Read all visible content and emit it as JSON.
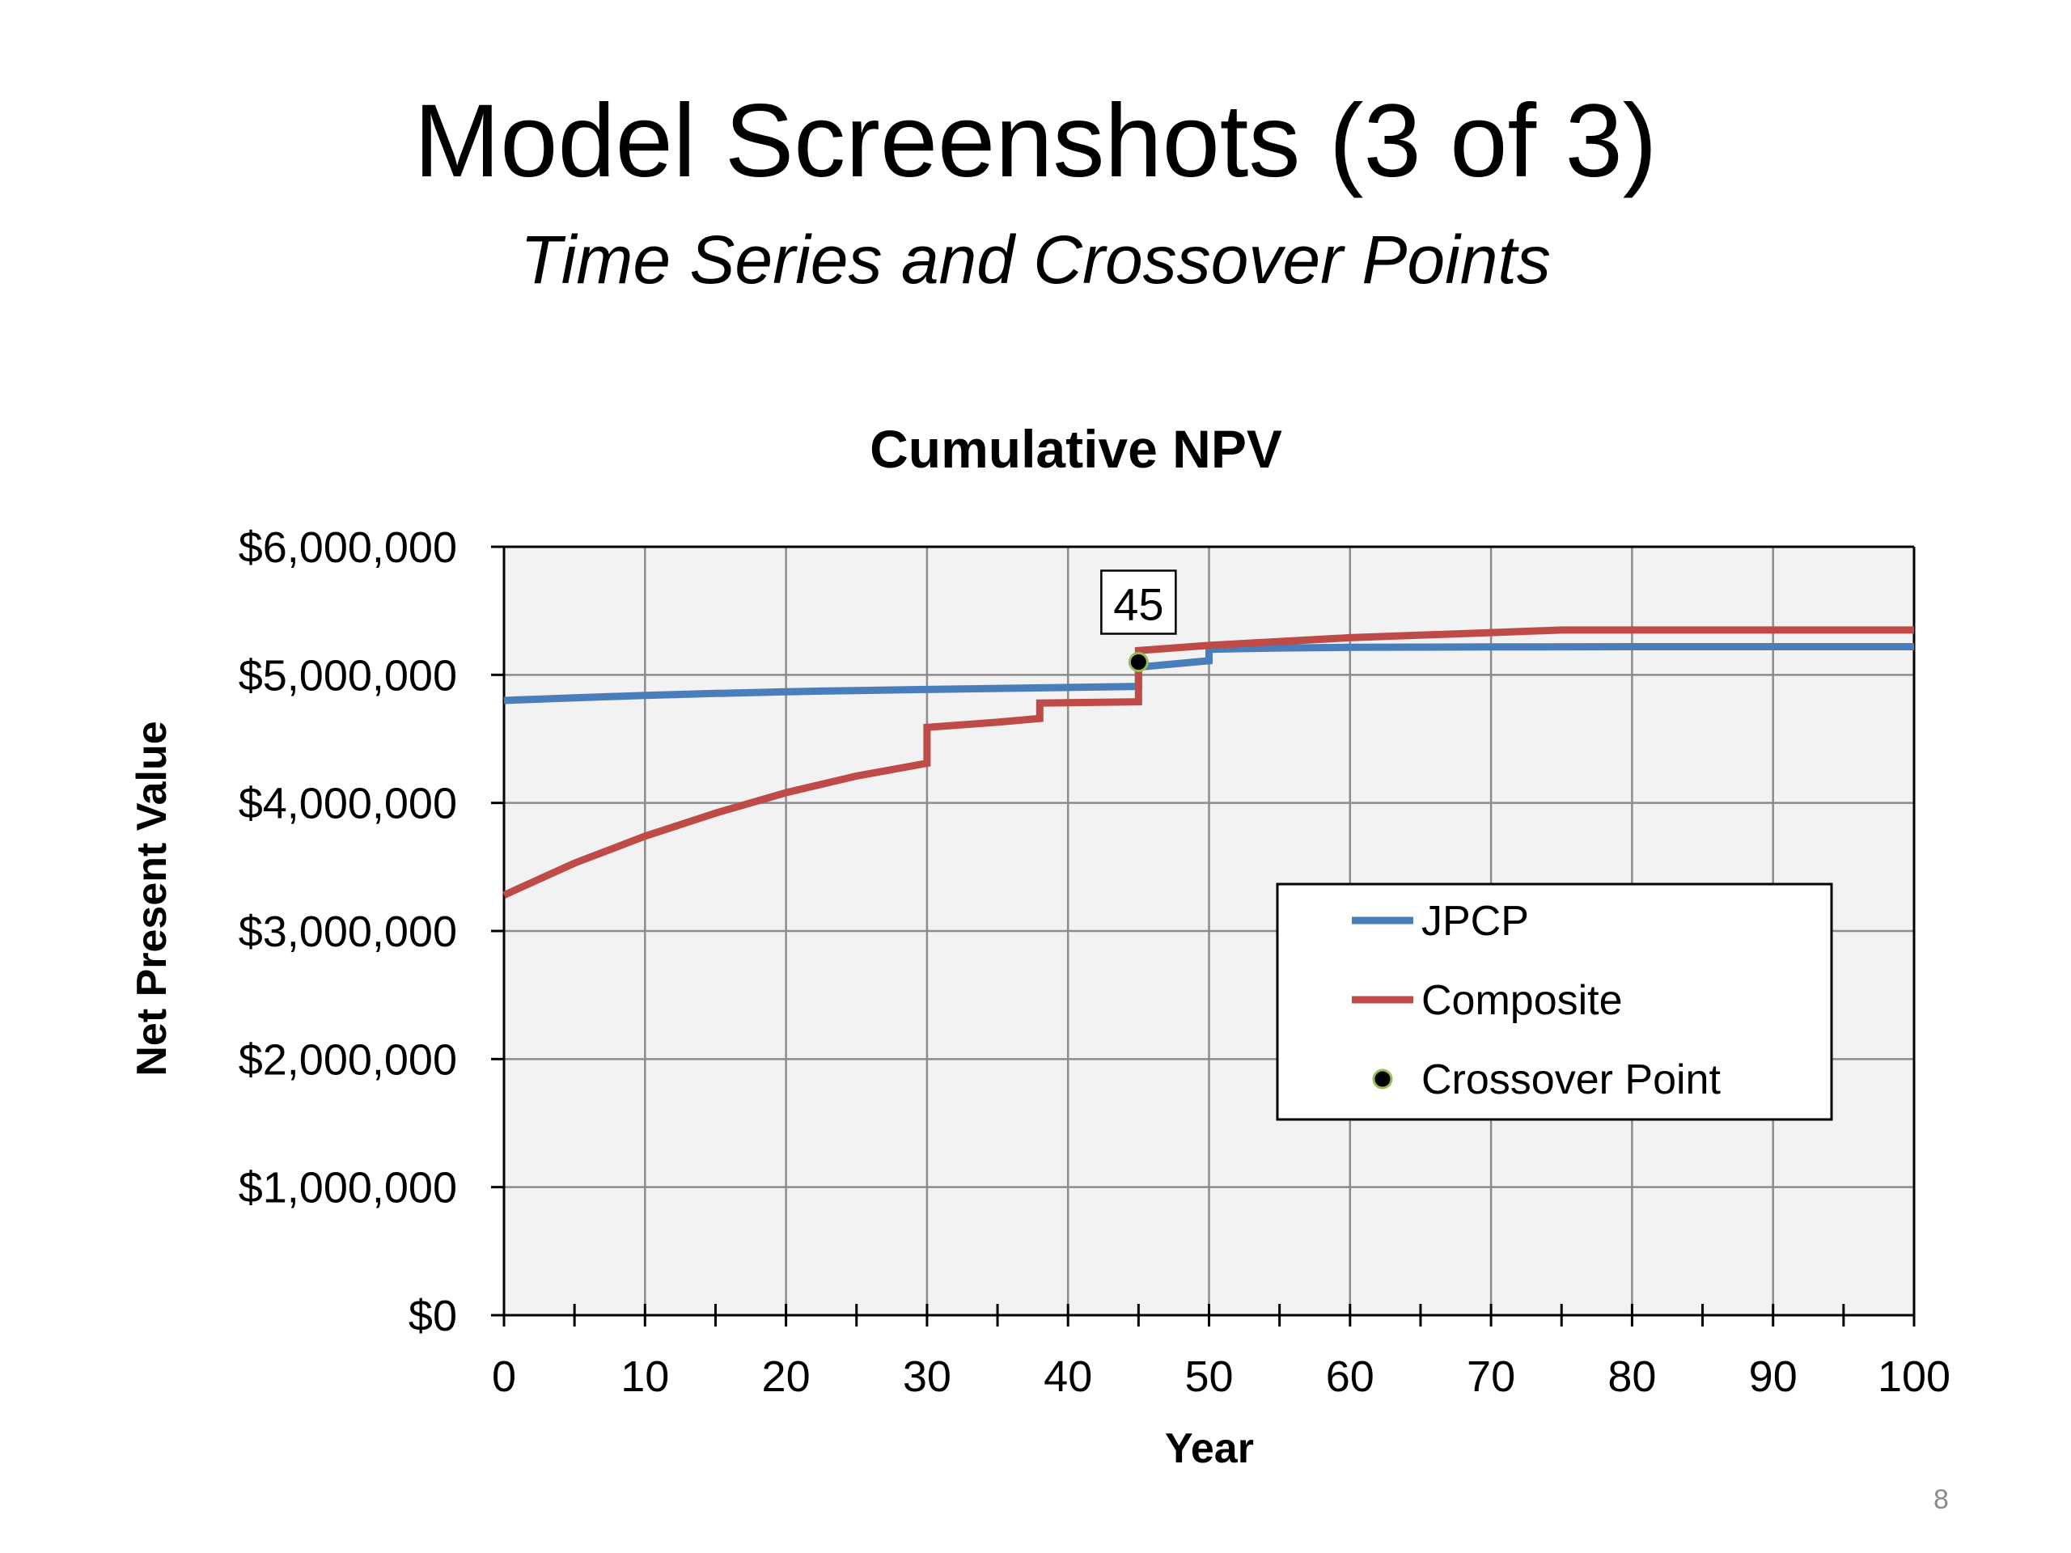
{
  "slide": {
    "title": "Model Screenshots (3 of 3)",
    "subtitle": "Time Series and Crossover Points",
    "page_number": "8"
  },
  "chart_data": {
    "type": "line",
    "title": "Cumulative NPV",
    "xlabel": "Year",
    "ylabel": "Net Present Value",
    "xlim": [
      0,
      100
    ],
    "ylim": [
      0,
      6000000
    ],
    "x_ticks": [
      0,
      10,
      20,
      30,
      40,
      50,
      60,
      70,
      80,
      90,
      100
    ],
    "y_ticks": [
      0,
      1000000,
      2000000,
      3000000,
      4000000,
      5000000,
      6000000
    ],
    "x_tick_labels": [
      "0",
      "10",
      "20",
      "30",
      "40",
      "50",
      "60",
      "70",
      "80",
      "90",
      "100"
    ],
    "y_tick_labels": [
      "$0",
      "$1,000,000",
      "$2,000,000",
      "$3,000,000",
      "$4,000,000",
      "$5,000,000",
      "$6,000,000"
    ],
    "grid": true,
    "legend_position": "right",
    "series": [
      {
        "name": "JPCP",
        "color": "#4a7ebb",
        "points": [
          [
            0,
            4800000
          ],
          [
            5,
            4820000
          ],
          [
            10,
            4840000
          ],
          [
            15,
            4855000
          ],
          [
            20,
            4868000
          ],
          [
            25,
            4878000
          ],
          [
            30,
            4886000
          ],
          [
            35,
            4894000
          ],
          [
            40,
            4902000
          ],
          [
            45,
            4910000
          ],
          [
            45,
            5060000
          ],
          [
            50,
            5110000
          ],
          [
            50,
            5200000
          ],
          [
            55,
            5210000
          ],
          [
            60,
            5215000
          ],
          [
            70,
            5218000
          ],
          [
            80,
            5220000
          ],
          [
            90,
            5220000
          ],
          [
            100,
            5220000
          ]
        ]
      },
      {
        "name": "Composite",
        "color": "#be4b48",
        "points": [
          [
            0,
            3280000
          ],
          [
            5,
            3530000
          ],
          [
            10,
            3740000
          ],
          [
            15,
            3920000
          ],
          [
            20,
            4080000
          ],
          [
            25,
            4210000
          ],
          [
            30,
            4310000
          ],
          [
            30,
            4590000
          ],
          [
            35,
            4630000
          ],
          [
            38,
            4660000
          ],
          [
            38,
            4780000
          ],
          [
            45,
            4790000
          ],
          [
            45,
            5190000
          ],
          [
            50,
            5230000
          ],
          [
            60,
            5290000
          ],
          [
            70,
            5330000
          ],
          [
            75,
            5350000
          ],
          [
            80,
            5350000
          ],
          [
            90,
            5350000
          ],
          [
            100,
            5350000
          ]
        ]
      }
    ],
    "crossover_point": {
      "name": "Crossover Point",
      "x": 45,
      "y": 5100000,
      "label": "45"
    }
  }
}
